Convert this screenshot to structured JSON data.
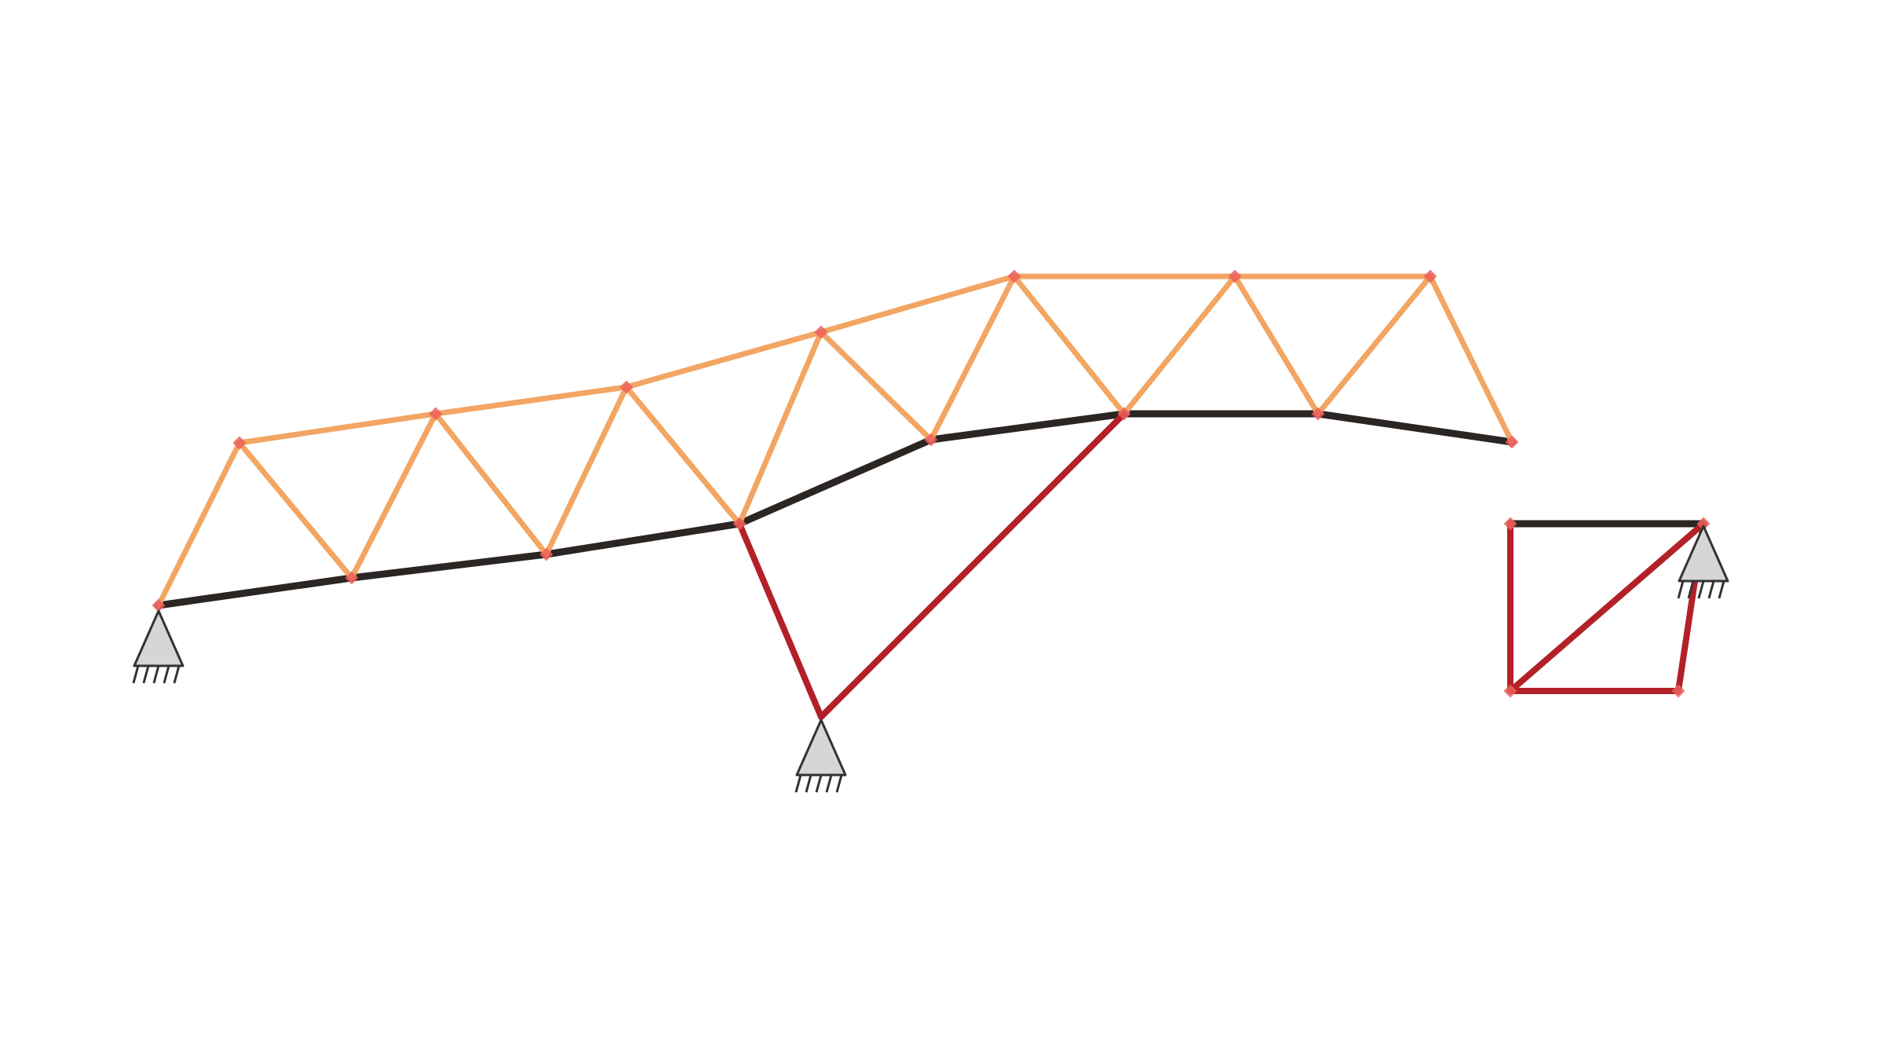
{
  "colors": {
    "background": "#ffffff",
    "orange_member": "#f3a563",
    "dark_member": "#2b2523",
    "red_member": "#b32128",
    "node_marker": "#ec5f5a",
    "support_fill": "#d6d6d6",
    "support_stroke": "#333333"
  },
  "diagram": {
    "type": "truss-structure",
    "member_groups": [
      "orange",
      "dark",
      "red"
    ],
    "support_count": 3
  }
}
